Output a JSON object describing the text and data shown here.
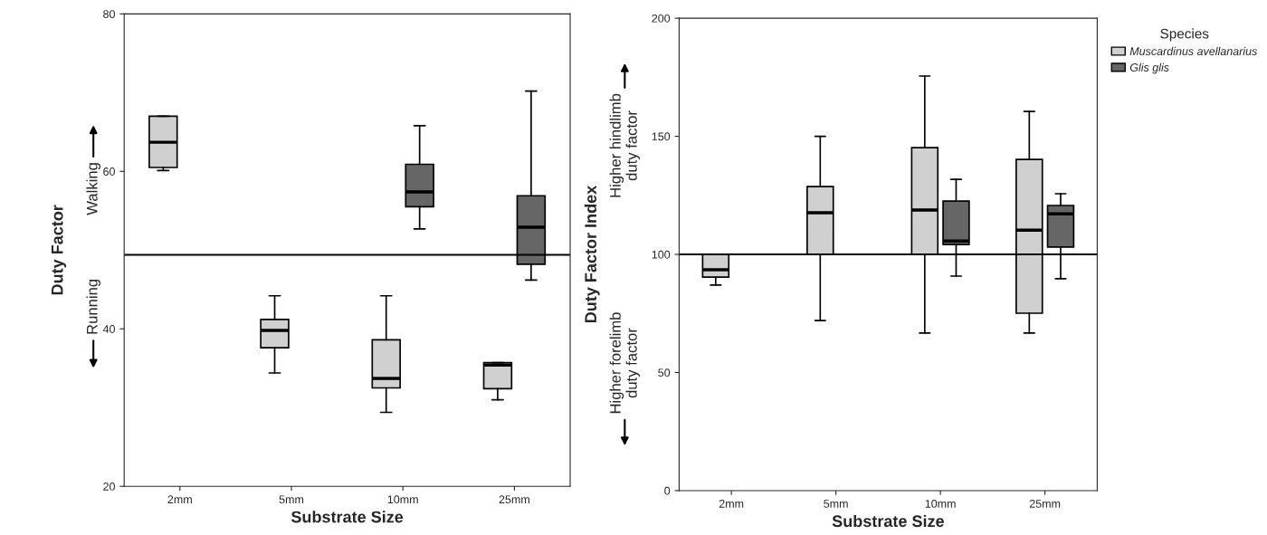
{
  "chart_data": [
    {
      "type": "box",
      "xlabel": "Substrate Size",
      "ylabel": "Duty Factor",
      "categories": [
        "2mm",
        "5mm",
        "10mm",
        "25mm"
      ],
      "ylim": [
        20,
        80
      ],
      "yticks": [
        20,
        40,
        60,
        80
      ],
      "series": [
        {
          "color": "#d0d0d0",
          "boxes": [
            {
              "low": 60.1,
              "q1": 60.5,
              "median": 63.7,
              "q3": 67.0,
              "high": 67.0
            },
            {
              "low": 34.4,
              "q1": 37.6,
              "median": 39.8,
              "q3": 41.2,
              "high": 44.2
            },
            {
              "low": 29.4,
              "q1": 32.5,
              "median": 33.7,
              "q3": 38.6,
              "high": 44.2
            },
            {
              "low": 31.0,
              "q1": 32.4,
              "median": 35.4,
              "q3": 35.7,
              "high": 35.7
            }
          ]
        },
        {
          "color": "#666666",
          "boxes": [
            null,
            null,
            {
              "low": 52.7,
              "q1": 55.5,
              "median": 57.4,
              "q3": 60.9,
              "high": 65.8
            },
            {
              "low": 46.2,
              "q1": 48.2,
              "median": 52.9,
              "q3": 56.9,
              "high": 70.2
            }
          ]
        }
      ],
      "ref_lines": [
        {
          "axis": "y",
          "value": 49.4,
          "color": "#000000"
        }
      ],
      "annotations": [
        "Walking",
        "Running"
      ]
    },
    {
      "type": "box",
      "xlabel": "Substrate Size",
      "ylabel": "Duty Factor Index",
      "categories": [
        "2mm",
        "5mm",
        "10mm",
        "25mm"
      ],
      "ylim": [
        0,
        200
      ],
      "yticks": [
        0,
        50,
        100,
        150,
        200
      ],
      "legend": "right",
      "legend_title": "Species",
      "series": [
        {
          "name": "Muscardinus avellanarius",
          "color": "#d0d0d0",
          "boxes": [
            {
              "low": 87.0,
              "q1": 90.4,
              "median": 93.5,
              "q3": 100,
              "high": 100
            },
            {
              "low": 72,
              "q1": 100,
              "median": 117.6,
              "q3": 128.7,
              "high": 150
            },
            {
              "low": 66.7,
              "q1": 100,
              "median": 118.8,
              "q3": 145.2,
              "high": 175.5
            },
            {
              "low": 66.7,
              "q1": 75.1,
              "median": 110.3,
              "q3": 140.2,
              "high": 160.5
            }
          ]
        },
        {
          "name": "Glis glis",
          "color": "#666666",
          "boxes": [
            null,
            null,
            {
              "low": 90.8,
              "q1": 104.2,
              "median": 105.7,
              "q3": 122.6,
              "high": 131.8
            },
            {
              "low": 89.7,
              "q1": 103.1,
              "median": 117.2,
              "q3": 120.7,
              "high": 125.7
            }
          ]
        }
      ],
      "ref_lines": [
        {
          "axis": "y",
          "value": 100,
          "color": "#000000"
        }
      ],
      "annotations": [
        "Higher hindlimb\nduty factor",
        "Higher forelimb\nduty factor"
      ]
    }
  ]
}
